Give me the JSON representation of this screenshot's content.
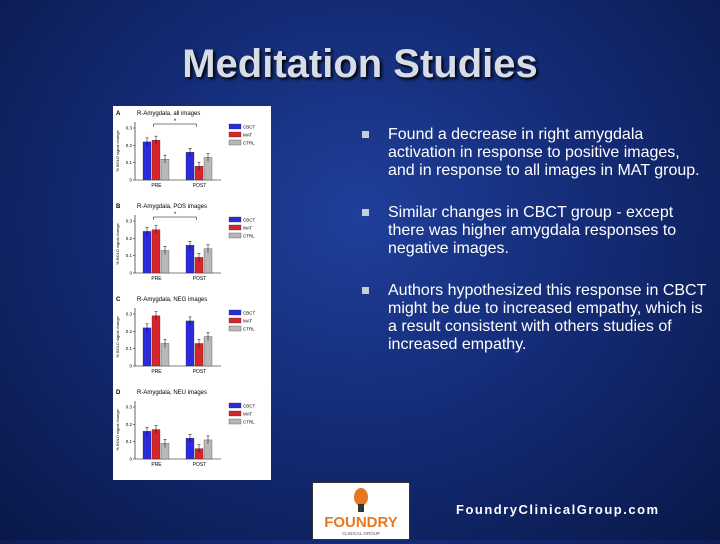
{
  "slide": {
    "title": "Meditation Studies",
    "bullets": [
      "Found a decrease in right amygdala activation in response to positive images, and in response to all images in MAT group.",
      "Similar changes in CBCT group - except there was higher amygdala responses to negative images.",
      "Authors hypothesized this response in CBCT might be due to increased empathy, which is a result consistent with others studies of increased empathy."
    ],
    "website": "FoundryClinicalGroup.com"
  },
  "logo": {
    "name": "FOUNDRY",
    "tagline": "CLINICAL GROUP"
  },
  "colors": {
    "cbct": "#2b2bdc",
    "mat": "#d8242c",
    "ctrl": "#b8b8b8",
    "logo_orange": "#e87722"
  },
  "chart_data": [
    {
      "type": "bar",
      "panel": "A",
      "title": "R-Amygdala, all images",
      "ylabel": "% BOLD signal change",
      "categories": [
        "PRE",
        "POST"
      ],
      "ylim": [
        0,
        0.3
      ],
      "yticks": [
        "0",
        "0.1",
        "0.2",
        "0.3"
      ],
      "series": [
        {
          "name": "CBCT",
          "values": [
            0.22,
            0.16
          ]
        },
        {
          "name": "MAT",
          "values": [
            0.23,
            0.08
          ]
        },
        {
          "name": "CTRL",
          "values": [
            0.12,
            0.13
          ]
        }
      ],
      "annotation": "*"
    },
    {
      "type": "bar",
      "panel": "B",
      "title": "R-Amygdala, POS images",
      "ylabel": "% BOLD signal change",
      "categories": [
        "PRE",
        "POST"
      ],
      "ylim": [
        0,
        0.3
      ],
      "yticks": [
        "0",
        "0.1",
        "0.2",
        "0.3"
      ],
      "series": [
        {
          "name": "CBCT",
          "values": [
            0.24,
            0.16
          ]
        },
        {
          "name": "MAT",
          "values": [
            0.25,
            0.09
          ]
        },
        {
          "name": "CTRL",
          "values": [
            0.13,
            0.14
          ]
        }
      ],
      "annotation": "*"
    },
    {
      "type": "bar",
      "panel": "C",
      "title": "R-Amygdala, NEG images",
      "ylabel": "% BOLD signal change",
      "categories": [
        "PRE",
        "POST"
      ],
      "ylim": [
        0,
        0.3
      ],
      "yticks": [
        "0",
        "0.1",
        "0.2",
        "0.3"
      ],
      "series": [
        {
          "name": "CBCT",
          "values": [
            0.22,
            0.26
          ]
        },
        {
          "name": "MAT",
          "values": [
            0.29,
            0.13
          ]
        },
        {
          "name": "CTRL",
          "values": [
            0.13,
            0.17
          ]
        }
      ],
      "annotation": ""
    },
    {
      "type": "bar",
      "panel": "D",
      "title": "R-Amygdala, NEU images",
      "ylabel": "% BOLD signal change",
      "categories": [
        "PRE",
        "POST"
      ],
      "ylim": [
        0,
        0.3
      ],
      "yticks": [
        "0",
        "0.1",
        "0.2",
        "0.3"
      ],
      "series": [
        {
          "name": "CBCT",
          "values": [
            0.16,
            0.12
          ]
        },
        {
          "name": "MAT",
          "values": [
            0.17,
            0.06
          ]
        },
        {
          "name": "CTRL",
          "values": [
            0.09,
            0.11
          ]
        }
      ],
      "annotation": ""
    }
  ]
}
